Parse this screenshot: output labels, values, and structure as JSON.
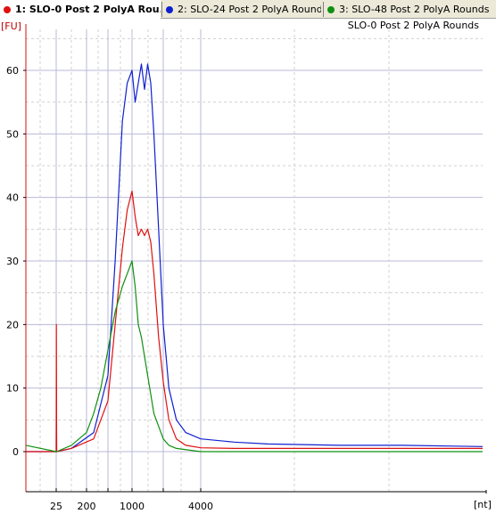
{
  "tabs": [
    {
      "label": "1: SLO-0 Post 2 PolyA Rou...",
      "color": "#e01010",
      "active": true
    },
    {
      "label": "2: SLO-24 Post 2 PolyA Rounds",
      "color": "#1020d0",
      "active": false
    },
    {
      "label": "3: SLO-48 Post 2 PolyA Rounds",
      "color": "#109010",
      "active": false
    }
  ],
  "chart_data": {
    "type": "line",
    "title": "SLO-0 Post 2 PolyA Rounds",
    "ylabel": "[FU]",
    "xlabel": "[nt]",
    "ylim": [
      -6,
      67
    ],
    "yticks": [
      0,
      10,
      20,
      30,
      40,
      50,
      60
    ],
    "xticks": [
      {
        "value": 25,
        "label": "25"
      },
      {
        "value": 200,
        "label": "200"
      },
      {
        "value": 500,
        "label": ""
      },
      {
        "value": 1000,
        "label": "1000"
      },
      {
        "value": 2000,
        "label": ""
      },
      {
        "value": 4000,
        "label": "4000"
      }
    ],
    "grid": true,
    "series": [
      {
        "name": "SLO-24 Post 2 PolyA Rounds",
        "color": "#1020d0",
        "x": [
          0,
          25,
          26,
          27,
          100,
          300,
          500,
          650,
          800,
          900,
          1000,
          1100,
          1200,
          1300,
          1400,
          1500,
          1600,
          1700,
          1850,
          2000,
          2300,
          2700,
          3200,
          4000,
          5000,
          6000,
          8000,
          10000,
          12000
        ],
        "y": [
          0,
          0,
          10,
          0,
          0.5,
          3,
          12,
          30,
          52,
          58,
          60,
          55,
          58,
          61,
          57,
          61,
          58,
          50,
          35,
          20,
          10,
          5,
          3,
          2,
          1.5,
          1.2,
          1,
          1,
          0.8
        ]
      },
      {
        "name": "SLO-0 Post 2 PolyA Rounds",
        "color": "#e01010",
        "x": [
          0,
          25,
          26,
          27,
          100,
          300,
          500,
          650,
          800,
          900,
          1000,
          1100,
          1200,
          1300,
          1400,
          1500,
          1600,
          1700,
          1850,
          2000,
          2300,
          2700,
          3200,
          4000,
          5000,
          6000,
          8000,
          10000,
          12000
        ],
        "y": [
          0,
          0,
          20,
          0,
          0.5,
          2,
          8,
          20,
          32,
          38,
          41,
          37,
          34,
          35,
          34,
          35,
          33,
          28,
          18,
          11,
          5,
          2,
          1,
          0.6,
          0.5,
          0.5,
          0.5,
          0.5,
          0.5
        ]
      },
      {
        "name": "SLO-48 Post 2 PolyA Rounds",
        "color": "#109010",
        "x": [
          0,
          25,
          26,
          27,
          100,
          200,
          300,
          400,
          500,
          650,
          800,
          900,
          1000,
          1100,
          1200,
          1300,
          1500,
          1700,
          2000,
          2300,
          2700,
          4000,
          6000,
          12000
        ],
        "y": [
          1,
          0,
          0,
          0,
          1,
          3,
          6,
          10,
          16,
          22,
          26,
          28,
          30,
          26,
          20,
          18,
          12,
          6,
          2,
          1,
          0.5,
          0,
          0,
          0
        ]
      }
    ]
  }
}
